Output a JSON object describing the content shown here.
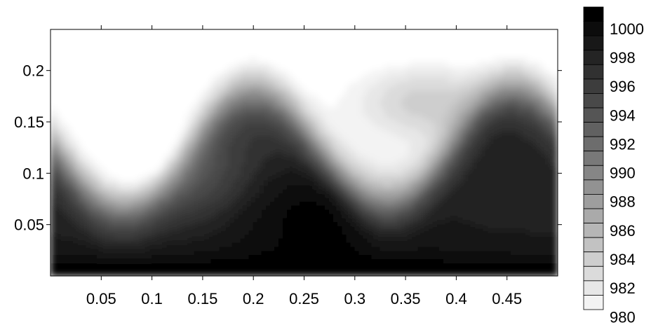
{
  "chart_data": {
    "type": "heatmap",
    "title": "",
    "xlabel": "",
    "ylabel": "",
    "xlim": [
      0,
      0.5
    ],
    "ylim": [
      0,
      0.24
    ],
    "x_ticks": [
      {
        "value": 0.05,
        "label": "0.05"
      },
      {
        "value": 0.1,
        "label": "0.1"
      },
      {
        "value": 0.15,
        "label": "0.15"
      },
      {
        "value": 0.2,
        "label": "0.2"
      },
      {
        "value": 0.25,
        "label": "0.25"
      },
      {
        "value": 0.3,
        "label": "0.3"
      },
      {
        "value": 0.35,
        "label": "0.35"
      },
      {
        "value": 0.4,
        "label": "0.4"
      },
      {
        "value": 0.45,
        "label": "0.45"
      }
    ],
    "y_ticks": [
      {
        "value": 0.05,
        "label": "0.05"
      },
      {
        "value": 0.1,
        "label": "0.1"
      },
      {
        "value": 0.15,
        "label": "0.15"
      },
      {
        "value": 0.2,
        "label": "0.2"
      }
    ],
    "colorbar": {
      "min": 980,
      "max": 1001,
      "step": 1,
      "color_low": "#ffffff",
      "color_high": "#000000",
      "tick_labels": [
        "1000",
        "998",
        "996",
        "994",
        "992",
        "990",
        "988",
        "986",
        "984",
        "982",
        "980"
      ]
    },
    "field_description": "density contours of a Kelvin-Helmholtz type roll-up: dense (dark) fluid below, light fluid above, interface wave crest near x=0.2, trough near x=0.33",
    "grid": false,
    "legend": "colorbar-right"
  }
}
